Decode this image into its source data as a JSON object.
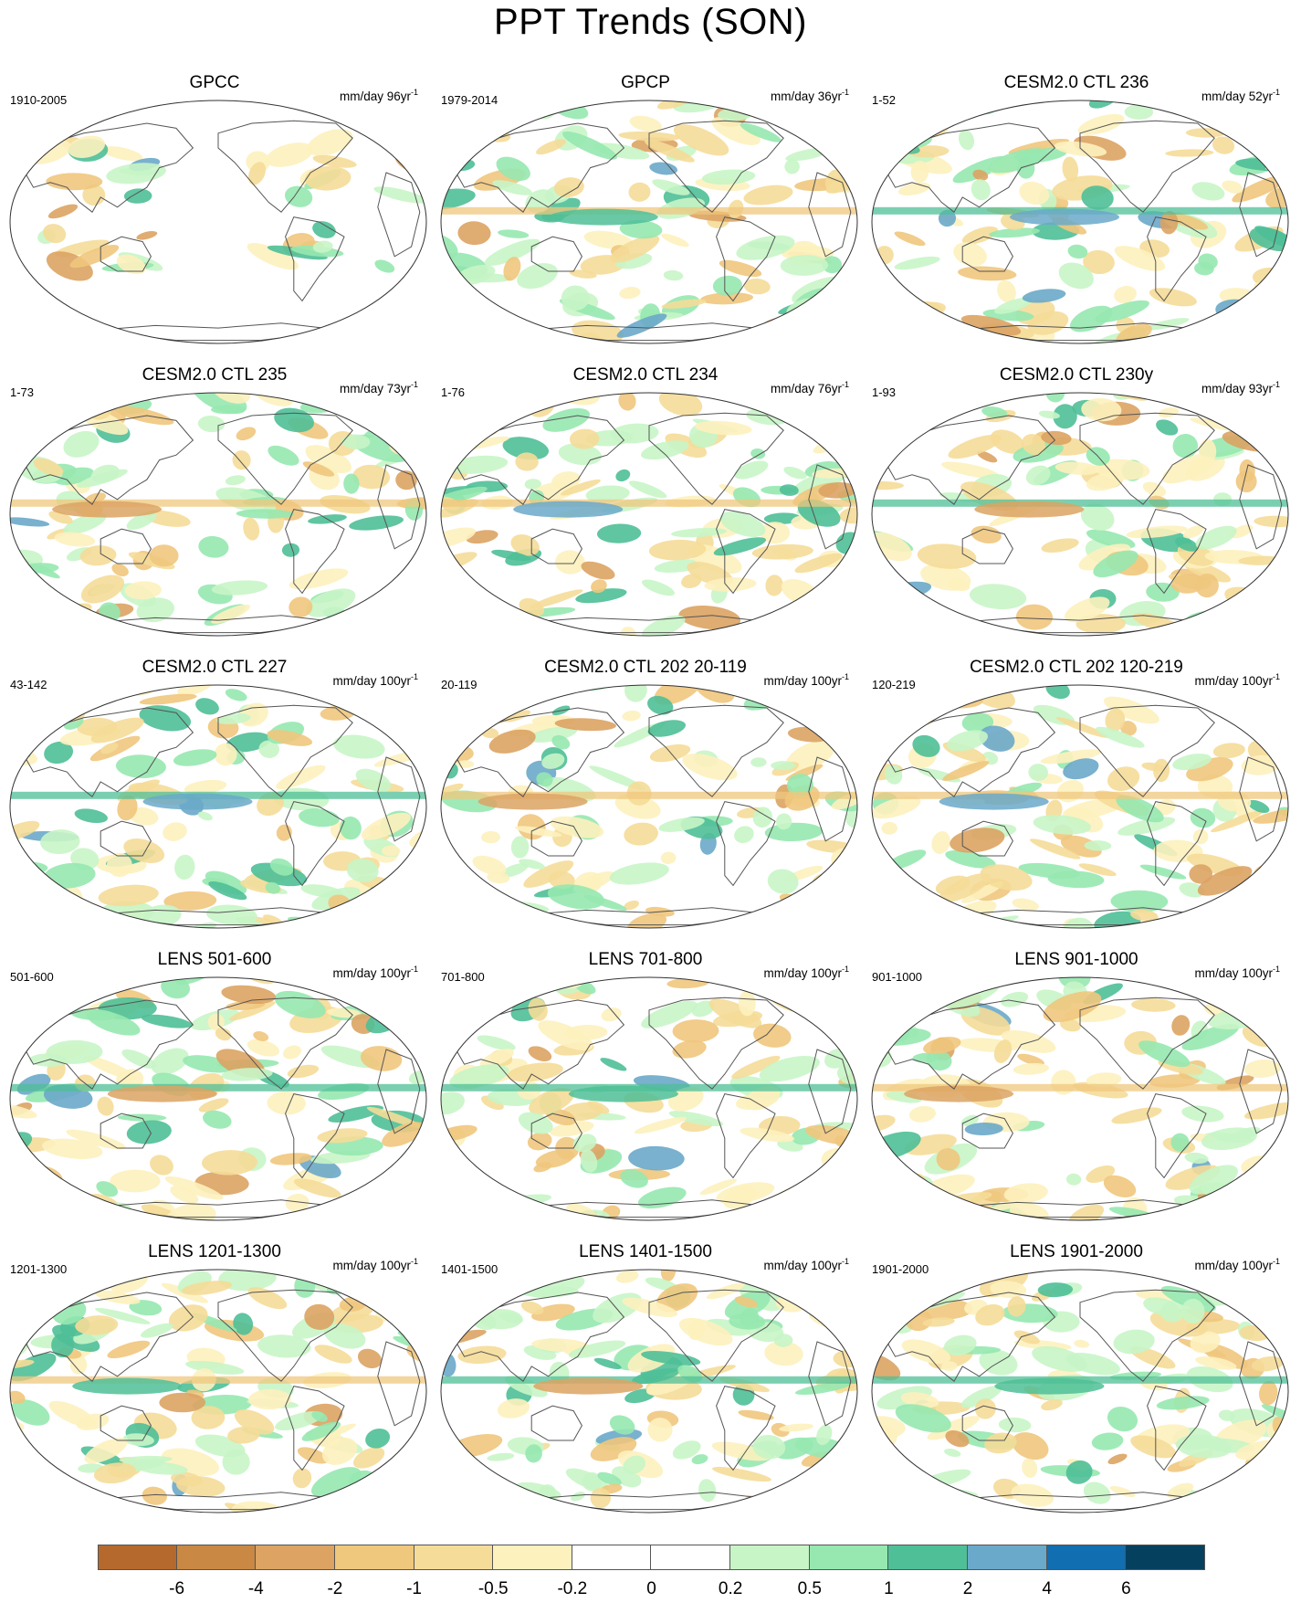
{
  "title": "PPT Trends (SON)",
  "panels": [
    {
      "title": "GPCC",
      "period": "1910-2005",
      "units": "mm/day 96yr",
      "sup": "-1"
    },
    {
      "title": "GPCP",
      "period": "1979-2014",
      "units": "mm/day 36yr",
      "sup": "-1"
    },
    {
      "title": "CESM2.0 CTL 236",
      "period": "1-52",
      "units": "mm/day 52yr",
      "sup": "-1"
    },
    {
      "title": "CESM2.0 CTL 235",
      "period": "1-73",
      "units": "mm/day 73yr",
      "sup": "-1"
    },
    {
      "title": "CESM2.0 CTL 234",
      "period": "1-76",
      "units": "mm/day 76yr",
      "sup": "-1"
    },
    {
      "title": "CESM2.0 CTL 230y",
      "period": "1-93",
      "units": "mm/day 93yr",
      "sup": "-1"
    },
    {
      "title": "CESM2.0 CTL 227",
      "period": "43-142",
      "units": "mm/day 100yr",
      "sup": "-1"
    },
    {
      "title": "CESM2.0 CTL 202 20-119",
      "period": "20-119",
      "units": "mm/day 100yr",
      "sup": "-1"
    },
    {
      "title": "CESM2.0 CTL 202 120-219",
      "period": "120-219",
      "units": "mm/day 100yr",
      "sup": "-1"
    },
    {
      "title": "LENS 501-600",
      "period": "501-600",
      "units": "mm/day 100yr",
      "sup": "-1"
    },
    {
      "title": "LENS 701-800",
      "period": "701-800",
      "units": "mm/day 100yr",
      "sup": "-1"
    },
    {
      "title": "LENS 901-1000",
      "period": "901-1000",
      "units": "mm/day 100yr",
      "sup": "-1"
    },
    {
      "title": "LENS 1201-1300",
      "period": "1201-1300",
      "units": "mm/day 100yr",
      "sup": "-1"
    },
    {
      "title": "LENS 1401-1500",
      "period": "1401-1500",
      "units": "mm/day 100yr",
      "sup": "-1"
    },
    {
      "title": "LENS 1901-2000",
      "period": "1901-2000",
      "units": "mm/day 100yr",
      "sup": "-1"
    }
  ],
  "colorbar": {
    "colors": [
      "#b5692c",
      "#c98843",
      "#dca363",
      "#efc77d",
      "#f5dc98",
      "#fdf1be",
      "#ffffff",
      "#ffffff",
      "#c8f5c6",
      "#96e8b0",
      "#4fbf97",
      "#6aa9c9",
      "#116eb0",
      "#06405f"
    ],
    "ticks": [
      "-6",
      "-4",
      "-2",
      "-1",
      "-0.5",
      "-0.2",
      "0",
      "0.2",
      "0.5",
      "1",
      "2",
      "4",
      "6"
    ]
  }
}
